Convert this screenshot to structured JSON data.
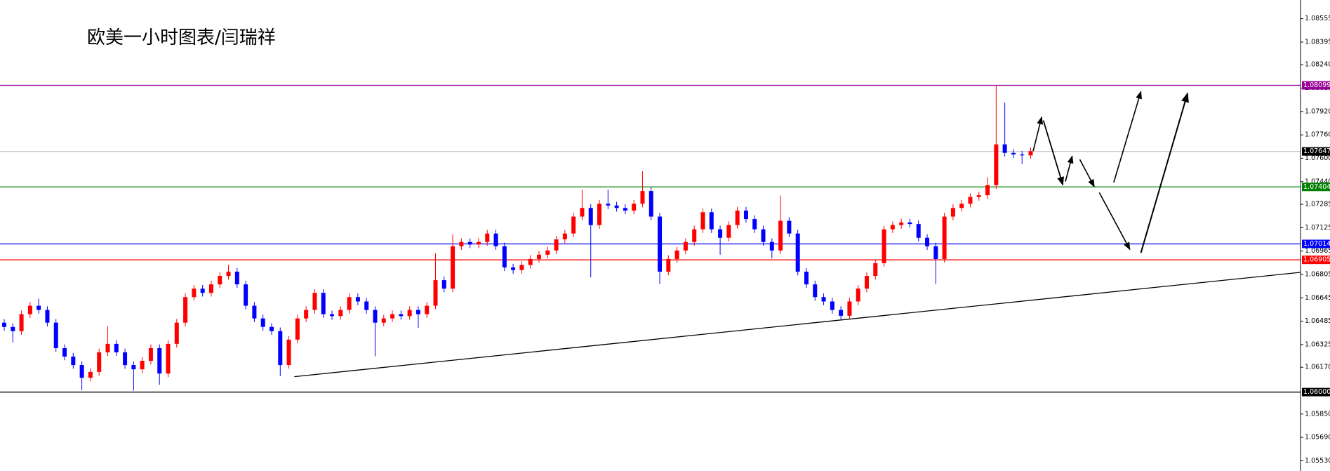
{
  "chart_data": {
    "type": "candlestick",
    "title": "欧美一小时图表/闫瑞祥",
    "ylim": [
      1.0546,
      1.08683
    ],
    "yticks": [
      1.08555,
      1.08395,
      {
        "value": 1.0824,
        "label": "1.08240"
      },
      {
        "value": 1.0808,
        "label": "1.08080"
      },
      {
        "value": 1.0792,
        "label": "1.07920"
      },
      {
        "value": 1.0776,
        "label": "1.07760"
      },
      {
        "value": 1.076,
        "label": "1.07600"
      },
      {
        "value": 1.0744,
        "label": "1.07440"
      },
      1.07285,
      1.07125,
      1.06965,
      1.06805,
      1.06645,
      1.06485,
      1.06325,
      {
        "value": 1.0617,
        "label": "1.06170"
      },
      {
        "value": 1.0585,
        "label": "1.05850"
      },
      {
        "value": 1.0569,
        "label": "1.05690"
      },
      {
        "value": 1.0553,
        "label": "1.05530"
      }
    ],
    "up_color": "#ff0000",
    "down_color": "#0000ff",
    "levels": [
      {
        "value": 1.08099,
        "color": "#990099"
      },
      {
        "value": 1.07647,
        "color": "#000000",
        "line_color": "#c8c8c8"
      },
      {
        "value": 1.07404,
        "color": "#008000"
      },
      {
        "value": 1.07014,
        "color": "#0000ff"
      },
      {
        "value": 1.06905,
        "color": "#ff0000"
      },
      {
        "value": 1.06,
        "label": "1.06000",
        "color": "#000000"
      }
    ],
    "candles": [
      [
        1.06475,
        1.065,
        1.06421,
        1.06446
      ],
      [
        1.06446,
        1.06471,
        1.0634,
        1.06417
      ],
      [
        1.06417,
        1.06558,
        1.06392,
        1.06533
      ],
      [
        1.06533,
        1.06616,
        1.06508,
        1.06591
      ],
      [
        1.06591,
        1.0664,
        1.06537,
        1.06562
      ],
      [
        1.06562,
        1.06587,
        1.0645,
        1.06475
      ],
      [
        1.06475,
        1.065,
        1.06276,
        1.06301
      ],
      [
        1.06301,
        1.06326,
        1.06218,
        1.06243
      ],
      [
        1.06243,
        1.06268,
        1.0616,
        1.06185
      ],
      [
        1.06185,
        1.0621,
        1.06012,
        1.06098
      ],
      [
        1.06098,
        1.06163,
        1.06073,
        1.06138
      ],
      [
        1.06138,
        1.06297,
        1.06113,
        1.06272
      ],
      [
        1.06272,
        1.0645,
        1.06247,
        1.0633
      ],
      [
        1.0633,
        1.06355,
        1.06247,
        1.06272
      ],
      [
        1.06272,
        1.06297,
        1.0616,
        1.06185
      ],
      [
        1.06185,
        1.0621,
        1.0601,
        1.06156
      ],
      [
        1.06156,
        1.06239,
        1.06131,
        1.06214
      ],
      [
        1.06214,
        1.06326,
        1.06189,
        1.06301
      ],
      [
        1.06301,
        1.06326,
        1.0605,
        1.06127
      ],
      [
        1.06127,
        1.06355,
        1.06102,
        1.0633
      ],
      [
        1.0633,
        1.065,
        1.06305,
        1.06475
      ],
      [
        1.06475,
        1.06675,
        1.0645,
        1.0665
      ],
      [
        1.0665,
        1.06733,
        1.06625,
        1.06708
      ],
      [
        1.06708,
        1.06733,
        1.06654,
        1.06679
      ],
      [
        1.06679,
        1.06762,
        1.06654,
        1.06737
      ],
      [
        1.06737,
        1.0682,
        1.06712,
        1.06795
      ],
      [
        1.06795,
        1.0687,
        1.0677,
        1.06824
      ],
      [
        1.06824,
        1.06849,
        1.06712,
        1.06737
      ],
      [
        1.06737,
        1.06762,
        1.06566,
        1.06591
      ],
      [
        1.06591,
        1.06616,
        1.06479,
        1.06504
      ],
      [
        1.06504,
        1.06529,
        1.06421,
        1.06446
      ],
      [
        1.06446,
        1.06471,
        1.06392,
        1.06417
      ],
      [
        1.06417,
        1.06442,
        1.0611,
        1.06185
      ],
      [
        1.06185,
        1.06384,
        1.0616,
        1.06359
      ],
      [
        1.06359,
        1.06529,
        1.06334,
        1.06504
      ],
      [
        1.06504,
        1.06587,
        1.06479,
        1.06562
      ],
      [
        1.06562,
        1.06704,
        1.06537,
        1.06679
      ],
      [
        1.06679,
        1.06704,
        1.06508,
        1.06533
      ],
      [
        1.06533,
        1.06558,
        1.06495,
        1.0652
      ],
      [
        1.0652,
        1.06587,
        1.06495,
        1.06562
      ],
      [
        1.06562,
        1.06675,
        1.06537,
        1.0665
      ],
      [
        1.0665,
        1.06675,
        1.06595,
        1.0662
      ],
      [
        1.0662,
        1.06645,
        1.06537,
        1.06562
      ],
      [
        1.06562,
        1.06587,
        1.06245,
        1.06475
      ],
      [
        1.06475,
        1.06529,
        1.0645,
        1.06504
      ],
      [
        1.06504,
        1.06558,
        1.06479,
        1.06533
      ],
      [
        1.06533,
        1.06558,
        1.06495,
        1.0652
      ],
      [
        1.0652,
        1.06587,
        1.06495,
        1.06562
      ],
      [
        1.06562,
        1.06587,
        1.0644,
        1.06533
      ],
      [
        1.06533,
        1.06616,
        1.06508,
        1.06591
      ],
      [
        1.06591,
        1.0695,
        1.06566,
        1.06766
      ],
      [
        1.06766,
        1.06791,
        1.06683,
        1.06708
      ],
      [
        1.06708,
        1.0708,
        1.06683,
        1.06998
      ],
      [
        1.06998,
        1.07052,
        1.06973,
        1.07027
      ],
      [
        1.07027,
        1.07052,
        1.06985,
        1.0701
      ],
      [
        1.0701,
        1.07052,
        1.06985,
        1.07027
      ],
      [
        1.07027,
        1.0711,
        1.07002,
        1.07085
      ],
      [
        1.07085,
        1.0711,
        1.06973,
        1.06998
      ],
      [
        1.06998,
        1.07023,
        1.06828,
        1.06853
      ],
      [
        1.06853,
        1.06878,
        1.0681,
        1.06835
      ],
      [
        1.06835,
        1.06895,
        1.0681,
        1.0687
      ],
      [
        1.0687,
        1.06936,
        1.06845,
        1.06911
      ],
      [
        1.06911,
        1.06965,
        1.06886,
        1.0694
      ],
      [
        1.0694,
        1.06994,
        1.06915,
        1.06969
      ],
      [
        1.06969,
        1.0707,
        1.06944,
        1.07045
      ],
      [
        1.07045,
        1.0711,
        1.0702,
        1.07085
      ],
      [
        1.07085,
        1.07226,
        1.0706,
        1.07201
      ],
      [
        1.07201,
        1.07385,
        1.07176,
        1.0726
      ],
      [
        1.0726,
        1.07285,
        1.06785,
        1.07143
      ],
      [
        1.07143,
        1.07314,
        1.07118,
        1.07289
      ],
      [
        1.07289,
        1.07385,
        1.07252,
        1.07277
      ],
      [
        1.07277,
        1.07302,
        1.07235,
        1.0726
      ],
      [
        1.0726,
        1.07285,
        1.07217,
        1.07242
      ],
      [
        1.07242,
        1.07314,
        1.07217,
        1.07289
      ],
      [
        1.07289,
        1.07511,
        1.07264,
        1.07376
      ],
      [
        1.07376,
        1.07401,
        1.07176,
        1.07201
      ],
      [
        1.07201,
        1.07226,
        1.0674,
        1.06824
      ],
      [
        1.06824,
        1.06936,
        1.06799,
        1.06911
      ],
      [
        1.06911,
        1.06994,
        1.06886,
        1.06969
      ],
      [
        1.06969,
        1.07052,
        1.06944,
        1.07027
      ],
      [
        1.07027,
        1.07139,
        1.07002,
        1.07114
      ],
      [
        1.07114,
        1.07256,
        1.07089,
        1.07231
      ],
      [
        1.07231,
        1.07256,
        1.07089,
        1.07114
      ],
      [
        1.07114,
        1.07139,
        1.0694,
        1.07056
      ],
      [
        1.07056,
        1.07168,
        1.07031,
        1.07143
      ],
      [
        1.07143,
        1.07267,
        1.07118,
        1.07242
      ],
      [
        1.07242,
        1.07267,
        1.07159,
        1.07184
      ],
      [
        1.07184,
        1.07209,
        1.07089,
        1.07114
      ],
      [
        1.07114,
        1.07139,
        1.07002,
        1.07027
      ],
      [
        1.07027,
        1.07052,
        1.06915,
        1.06969
      ],
      [
        1.06969,
        1.07345,
        1.06944,
        1.07172
      ],
      [
        1.07172,
        1.07197,
        1.0706,
        1.07085
      ],
      [
        1.07085,
        1.0711,
        1.06799,
        1.06824
      ],
      [
        1.06824,
        1.06849,
        1.06712,
        1.06737
      ],
      [
        1.06737,
        1.06762,
        1.06625,
        1.0665
      ],
      [
        1.0665,
        1.06675,
        1.06595,
        1.0662
      ],
      [
        1.0662,
        1.06645,
        1.06537,
        1.06562
      ],
      [
        1.06562,
        1.06587,
        1.06497,
        1.06522
      ],
      [
        1.06522,
        1.06645,
        1.06497,
        1.0662
      ],
      [
        1.0662,
        1.06733,
        1.06595,
        1.06708
      ],
      [
        1.06708,
        1.0682,
        1.06683,
        1.06795
      ],
      [
        1.06795,
        1.06907,
        1.0677,
        1.06882
      ],
      [
        1.06882,
        1.07139,
        1.06857,
        1.07114
      ],
      [
        1.07114,
        1.07168,
        1.07089,
        1.07143
      ],
      [
        1.07143,
        1.07186,
        1.07118,
        1.07161
      ],
      [
        1.07161,
        1.07186,
        1.07125,
        1.0715
      ],
      [
        1.0715,
        1.07175,
        1.07031,
        1.07056
      ],
      [
        1.07056,
        1.07081,
        1.06973,
        1.06998
      ],
      [
        1.06998,
        1.07023,
        1.0674,
        1.06911
      ],
      [
        1.06911,
        1.07226,
        1.06886,
        1.07201
      ],
      [
        1.07201,
        1.07285,
        1.07176,
        1.0726
      ],
      [
        1.0726,
        1.07314,
        1.07235,
        1.07289
      ],
      [
        1.07289,
        1.0736,
        1.07264,
        1.07335
      ],
      [
        1.07335,
        1.07372,
        1.0731,
        1.07347
      ],
      [
        1.07347,
        1.0747,
        1.07322,
        1.07416
      ],
      [
        1.07416,
        1.08102,
        1.07391,
        1.07695
      ],
      [
        1.07695,
        1.0798,
        1.07612,
        1.07637
      ],
      [
        1.07637,
        1.07662,
        1.07601,
        1.07626
      ],
      [
        1.07626,
        1.07651,
        1.0756,
        1.0762
      ],
      [
        1.0762,
        1.07674,
        1.07595,
        1.07649
      ]
    ]
  }
}
